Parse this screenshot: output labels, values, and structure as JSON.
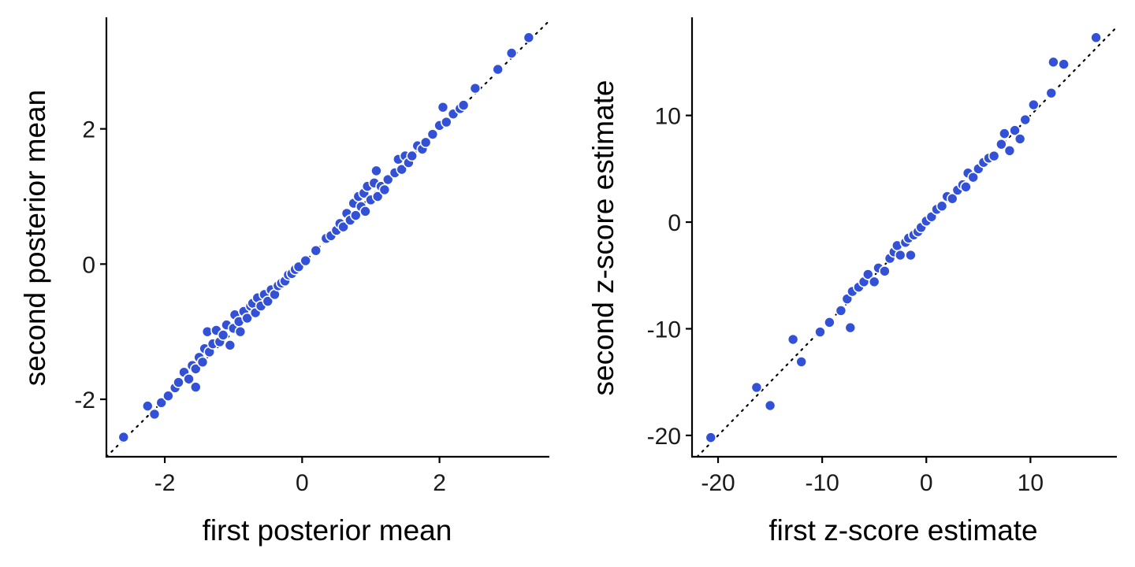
{
  "colors": {
    "point_fill": "#3351d6",
    "point_stroke": "#ffffff",
    "axis": "#000000",
    "reference_line": "#000000"
  },
  "chart_data": [
    {
      "type": "scatter",
      "title": "",
      "xlabel": "first posterior mean",
      "ylabel": "second posterior mean",
      "xlim": [
        -2.85,
        3.6
      ],
      "ylim": [
        -2.85,
        3.65
      ],
      "xticks": [
        -2,
        0,
        2
      ],
      "yticks": [
        -2,
        0,
        2
      ],
      "xtick_labels": [
        "-2",
        "0",
        "2"
      ],
      "ytick_labels": [
        "-2",
        "0",
        "2"
      ],
      "reference_line": "y = x",
      "points": [
        [
          -2.6,
          -2.56
        ],
        [
          -2.25,
          -2.1
        ],
        [
          -2.15,
          -2.22
        ],
        [
          -2.05,
          -2.05
        ],
        [
          -1.95,
          -1.95
        ],
        [
          -1.85,
          -1.83
        ],
        [
          -1.8,
          -1.75
        ],
        [
          -1.72,
          -1.6
        ],
        [
          -1.65,
          -1.7
        ],
        [
          -1.6,
          -1.5
        ],
        [
          -1.55,
          -1.55
        ],
        [
          -1.55,
          -1.82
        ],
        [
          -1.5,
          -1.38
        ],
        [
          -1.45,
          -1.45
        ],
        [
          -1.42,
          -1.25
        ],
        [
          -1.38,
          -1.0
        ],
        [
          -1.35,
          -1.3
        ],
        [
          -1.3,
          -1.18
        ],
        [
          -1.25,
          -0.98
        ],
        [
          -1.2,
          -1.15
        ],
        [
          -1.15,
          -1.05
        ],
        [
          -1.1,
          -0.9
        ],
        [
          -1.05,
          -1.2
        ],
        [
          -1.0,
          -0.95
        ],
        [
          -0.98,
          -0.75
        ],
        [
          -0.92,
          -0.85
        ],
        [
          -0.9,
          -1.0
        ],
        [
          -0.85,
          -0.7
        ],
        [
          -0.8,
          -0.8
        ],
        [
          -0.75,
          -0.62
        ],
        [
          -0.72,
          -0.58
        ],
        [
          -0.68,
          -0.72
        ],
        [
          -0.65,
          -0.5
        ],
        [
          -0.6,
          -0.62
        ],
        [
          -0.55,
          -0.45
        ],
        [
          -0.5,
          -0.55
        ],
        [
          -0.45,
          -0.38
        ],
        [
          -0.4,
          -0.45
        ],
        [
          -0.35,
          -0.32
        ],
        [
          -0.3,
          -0.28
        ],
        [
          -0.25,
          -0.25
        ],
        [
          -0.2,
          -0.16
        ],
        [
          -0.15,
          -0.14
        ],
        [
          -0.1,
          -0.08
        ],
        [
          -0.05,
          -0.04
        ],
        [
          0.05,
          0.05
        ],
        [
          0.2,
          0.2
        ],
        [
          0.35,
          0.38
        ],
        [
          0.42,
          0.42
        ],
        [
          0.5,
          0.5
        ],
        [
          0.55,
          0.6
        ],
        [
          0.6,
          0.55
        ],
        [
          0.65,
          0.75
        ],
        [
          0.7,
          0.65
        ],
        [
          0.75,
          0.9
        ],
        [
          0.78,
          0.72
        ],
        [
          0.82,
          1.0
        ],
        [
          0.86,
          0.85
        ],
        [
          0.9,
          1.05
        ],
        [
          0.92,
          0.78
        ],
        [
          0.95,
          1.15
        ],
        [
          1.0,
          0.95
        ],
        [
          1.05,
          1.2
        ],
        [
          1.08,
          1.38
        ],
        [
          1.1,
          1.0
        ],
        [
          1.15,
          1.15
        ],
        [
          1.2,
          1.1
        ],
        [
          1.25,
          1.25
        ],
        [
          1.35,
          1.35
        ],
        [
          1.4,
          1.55
        ],
        [
          1.45,
          1.4
        ],
        [
          1.5,
          1.6
        ],
        [
          1.55,
          1.5
        ],
        [
          1.6,
          1.6
        ],
        [
          1.68,
          1.75
        ],
        [
          1.75,
          1.7
        ],
        [
          1.8,
          1.8
        ],
        [
          1.9,
          1.92
        ],
        [
          2.0,
          2.05
        ],
        [
          2.05,
          2.32
        ],
        [
          2.1,
          2.1
        ],
        [
          2.2,
          2.22
        ],
        [
          2.3,
          2.3
        ],
        [
          2.35,
          2.35
        ],
        [
          2.52,
          2.6
        ],
        [
          2.85,
          2.88
        ],
        [
          3.05,
          3.12
        ],
        [
          3.3,
          3.35
        ]
      ]
    },
    {
      "type": "scatter",
      "title": "",
      "xlabel": "first z-score estimate",
      "ylabel": "second z-score estimate",
      "xlim": [
        -22.5,
        18.3
      ],
      "ylim": [
        -22.0,
        19.2
      ],
      "xticks": [
        -20,
        -10,
        0,
        10
      ],
      "yticks": [
        -20,
        -10,
        0,
        10
      ],
      "xtick_labels": [
        "-20",
        "-10",
        "0",
        "10"
      ],
      "ytick_labels": [
        "-20",
        "-10",
        "0",
        "10"
      ],
      "reference_line": "y = x",
      "points": [
        [
          -20.7,
          -20.2
        ],
        [
          -16.3,
          -15.5
        ],
        [
          -15.0,
          -17.2
        ],
        [
          -12.8,
          -11.0
        ],
        [
          -12.0,
          -13.1
        ],
        [
          -10.2,
          -10.3
        ],
        [
          -9.3,
          -9.4
        ],
        [
          -8.2,
          -8.3
        ],
        [
          -7.6,
          -7.2
        ],
        [
          -7.3,
          -9.9
        ],
        [
          -7.1,
          -6.5
        ],
        [
          -6.5,
          -6.1
        ],
        [
          -6.0,
          -5.6
        ],
        [
          -5.6,
          -4.9
        ],
        [
          -5.0,
          -5.6
        ],
        [
          -4.6,
          -4.3
        ],
        [
          -4.0,
          -4.6
        ],
        [
          -3.5,
          -3.4
        ],
        [
          -3.1,
          -2.8
        ],
        [
          -2.8,
          -2.2
        ],
        [
          -2.5,
          -3.1
        ],
        [
          -2.0,
          -1.9
        ],
        [
          -1.7,
          -1.5
        ],
        [
          -1.5,
          -3.1
        ],
        [
          -1.2,
          -1.2
        ],
        [
          -0.8,
          -0.9
        ],
        [
          -0.5,
          -0.5
        ],
        [
          0.0,
          0.1
        ],
        [
          0.5,
          0.5
        ],
        [
          1.0,
          1.2
        ],
        [
          1.5,
          1.5
        ],
        [
          2.0,
          2.4
        ],
        [
          2.5,
          2.2
        ],
        [
          3.0,
          3.0
        ],
        [
          3.5,
          3.5
        ],
        [
          3.8,
          3.3
        ],
        [
          4.0,
          4.6
        ],
        [
          4.5,
          4.2
        ],
        [
          5.0,
          5.0
        ],
        [
          5.5,
          5.6
        ],
        [
          6.0,
          6.0
        ],
        [
          6.5,
          6.2
        ],
        [
          7.2,
          7.3
        ],
        [
          7.5,
          8.3
        ],
        [
          8.0,
          6.7
        ],
        [
          8.5,
          8.6
        ],
        [
          9.0,
          7.8
        ],
        [
          9.5,
          9.6
        ],
        [
          10.3,
          11.0
        ],
        [
          12.0,
          12.1
        ],
        [
          12.2,
          15.0
        ],
        [
          13.2,
          14.8
        ],
        [
          16.3,
          17.3
        ]
      ]
    }
  ]
}
